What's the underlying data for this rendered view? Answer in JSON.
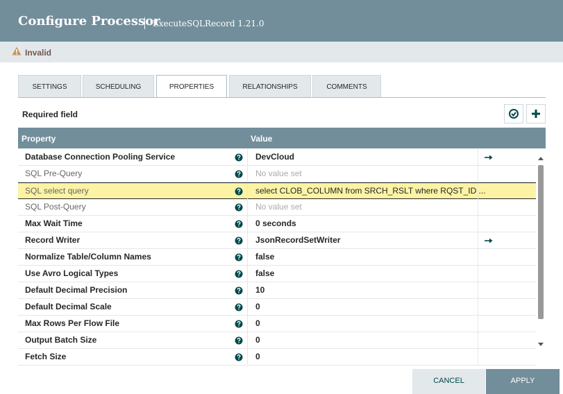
{
  "header": {
    "title": "Configure Processor",
    "subtitle": "ExecuteSQLRecord 1.21.0"
  },
  "status": "Invalid",
  "tabs": [
    {
      "label": "SETTINGS",
      "selected": false
    },
    {
      "label": "SCHEDULING",
      "selected": false
    },
    {
      "label": "PROPERTIES",
      "selected": true
    },
    {
      "label": "RELATIONSHIPS",
      "selected": false
    },
    {
      "label": "COMMENTS",
      "selected": false
    }
  ],
  "required_field": "Required field",
  "table": {
    "columns": [
      "Property",
      "Value"
    ],
    "rows": [
      {
        "property": "Database Connection Pooling Service",
        "value": "DevCloud",
        "required": true,
        "placeholder": false,
        "highlighted": false,
        "link": true
      },
      {
        "property": "SQL Pre-Query",
        "value": "No value set",
        "required": false,
        "placeholder": true,
        "highlighted": false,
        "link": false
      },
      {
        "property": "SQL select query",
        "value": "select CLOB_COLUMN from SRCH_RSLT where RQST_ID ...",
        "required": false,
        "placeholder": false,
        "highlighted": true,
        "link": false
      },
      {
        "property": "SQL Post-Query",
        "value": "No value set",
        "required": false,
        "placeholder": true,
        "highlighted": false,
        "link": false
      },
      {
        "property": "Max Wait Time",
        "value": "0 seconds",
        "required": true,
        "placeholder": false,
        "highlighted": false,
        "link": false
      },
      {
        "property": "Record Writer",
        "value": "JsonRecordSetWriter",
        "required": true,
        "placeholder": false,
        "highlighted": false,
        "link": true
      },
      {
        "property": "Normalize Table/Column Names",
        "value": "false",
        "required": true,
        "placeholder": false,
        "highlighted": false,
        "link": false
      },
      {
        "property": "Use Avro Logical Types",
        "value": "false",
        "required": true,
        "placeholder": false,
        "highlighted": false,
        "link": false
      },
      {
        "property": "Default Decimal Precision",
        "value": "10",
        "required": true,
        "placeholder": false,
        "highlighted": false,
        "link": false
      },
      {
        "property": "Default Decimal Scale",
        "value": "0",
        "required": true,
        "placeholder": false,
        "highlighted": false,
        "link": false
      },
      {
        "property": "Max Rows Per Flow File",
        "value": "0",
        "required": true,
        "placeholder": false,
        "highlighted": false,
        "link": false
      },
      {
        "property": "Output Batch Size",
        "value": "0",
        "required": true,
        "placeholder": false,
        "highlighted": false,
        "link": false
      },
      {
        "property": "Fetch Size",
        "value": "0",
        "required": true,
        "placeholder": false,
        "highlighted": false,
        "link": false
      }
    ]
  },
  "buttons": {
    "cancel": "CANCEL",
    "apply": "APPLY"
  }
}
